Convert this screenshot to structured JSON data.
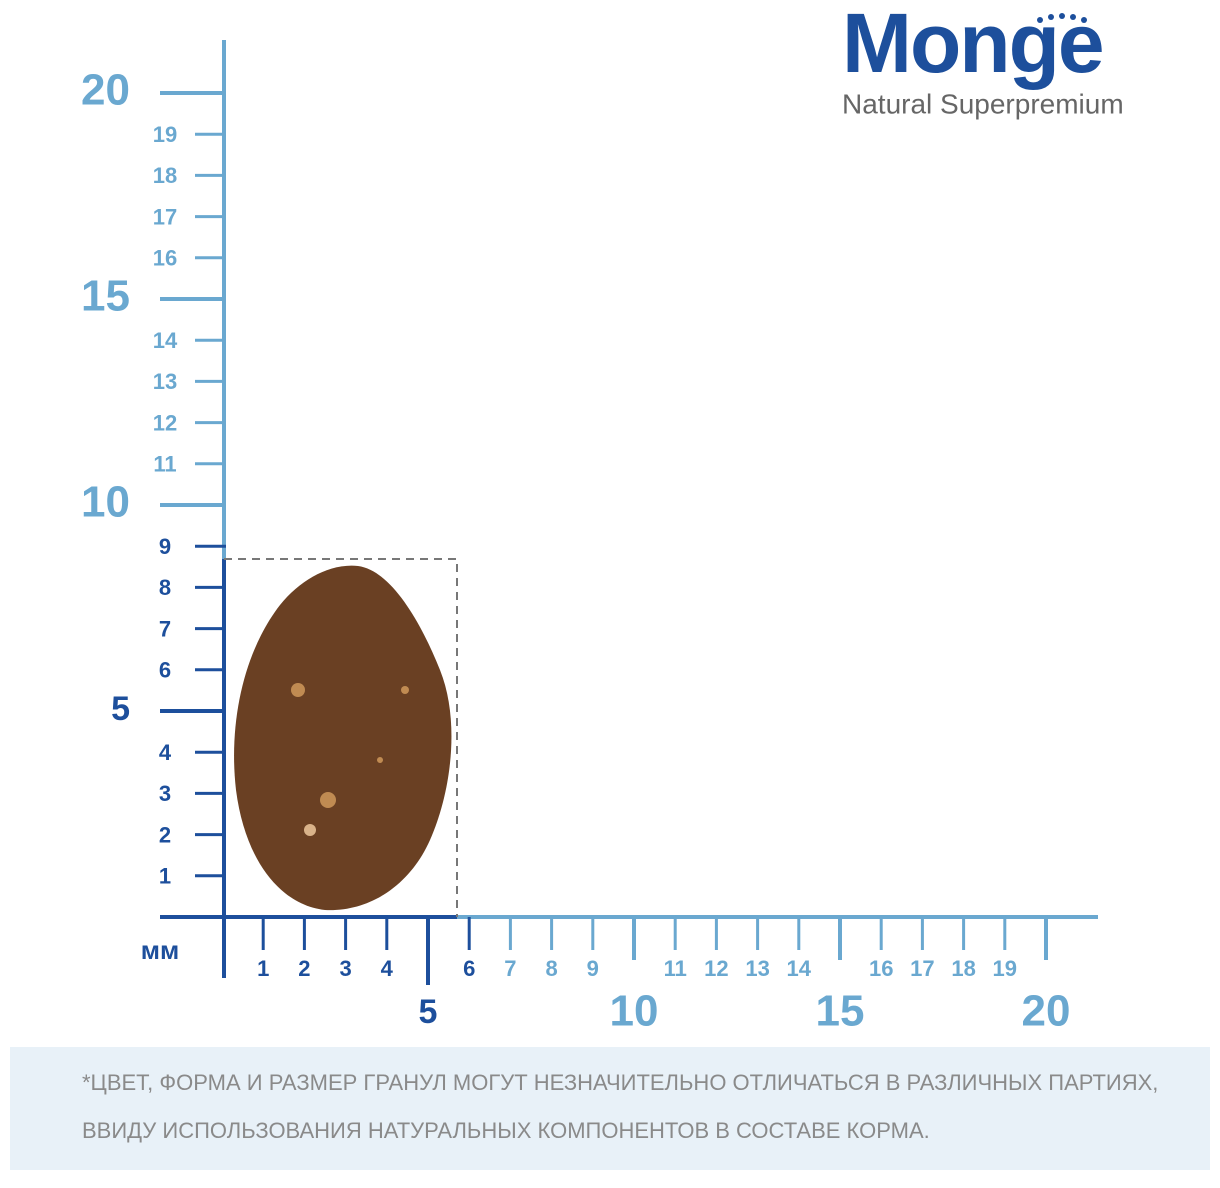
{
  "brand": {
    "name": "Monge",
    "tagline": "Natural Superpremium"
  },
  "ruler": {
    "unit": "мм",
    "x_labels": [
      1,
      2,
      3,
      4,
      5,
      6,
      7,
      8,
      9,
      10,
      11,
      12,
      13,
      14,
      15,
      16,
      17,
      18,
      19,
      20
    ],
    "y_labels": [
      1,
      2,
      3,
      4,
      5,
      6,
      7,
      8,
      9,
      10,
      11,
      12,
      13,
      14,
      15,
      16,
      17,
      18,
      19,
      20
    ]
  },
  "note": {
    "lines": [
      "*ЦВЕТ, ФОРМА И РАЗМЕР ГРАНУЛ МОГУТ НЕЗНАЧИТЕЛЬНО ОТЛИЧАТЬСЯ В РАЗЛИЧНЫХ ПАРТИЯХ,",
      "ВВИДУ ИСПОЛЬЗОВАНИЯ НАТУРАЛЬНЫХ КОМПОНЕНТОВ В СОСТАВЕ КОРМА."
    ]
  }
}
